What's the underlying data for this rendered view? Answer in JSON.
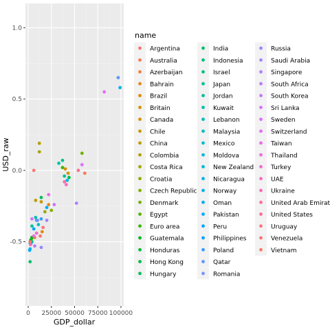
{
  "chart_data": {
    "type": "scatter",
    "xlabel": "GDP_dollar",
    "ylabel": "USD_raw",
    "xlim": [
      -3000,
      103000
    ],
    "ylim": [
      -0.95,
      1.17
    ],
    "x_ticks": [
      0,
      25000,
      50000,
      75000,
      100000
    ],
    "x_tick_labels": [
      "0",
      "25000",
      "50000",
      "75000",
      "100000"
    ],
    "y_ticks": [
      -0.5,
      0.0,
      0.5,
      1.0
    ],
    "y_tick_labels": [
      "-0.5",
      "0.0",
      "0.5",
      "1.0"
    ],
    "grid": true,
    "legend_title": "name",
    "legend_position": "right",
    "legend_columns": 3,
    "colors": {
      "panel_bg": "#ebebeb",
      "grid_major": "#ffffff",
      "grid_minor": "#f4f4f4",
      "axis_text": "#4d4d4d",
      "legend_key_bg": "#f2f2f2"
    },
    "series": [
      {
        "name": "Argentina",
        "color": "#F8766D",
        "points": [
          [
            13000,
            -0.46
          ]
        ]
      },
      {
        "name": "Australia",
        "color": "#F37B59",
        "points": [
          [
            61000,
            -0.02
          ]
        ]
      },
      {
        "name": "Azerbaijan",
        "color": "#ED8141",
        "points": [
          [
            7000,
            -0.47
          ]
        ]
      },
      {
        "name": "Bahrain",
        "color": "#E7861B",
        "points": [
          [
            22000,
            -0.24
          ]
        ]
      },
      {
        "name": "Brazil",
        "color": "#E08B00",
        "points": [
          [
            15000,
            -0.43
          ]
        ]
      },
      {
        "name": "Britain",
        "color": "#D89000",
        "points": [
          [
            40000,
            0.01
          ]
        ]
      },
      {
        "name": "Canada",
        "color": "#CF9400",
        "points": [
          [
            43000,
            -0.02
          ]
        ]
      },
      {
        "name": "Chile",
        "color": "#C59900",
        "points": [
          [
            14000,
            -0.22
          ]
        ]
      },
      {
        "name": "China",
        "color": "#BB9D00",
        "points": [
          [
            8000,
            -0.21
          ]
        ]
      },
      {
        "name": "Colombia",
        "color": "#B0A100",
        "points": [
          [
            12000,
            0.19
          ]
        ]
      },
      {
        "name": "Costa Rica",
        "color": "#A3A500",
        "points": [
          [
            12000,
            0.13
          ]
        ]
      },
      {
        "name": "Croatia",
        "color": "#95A900",
        "points": [
          [
            18000,
            -0.29
          ]
        ]
      },
      {
        "name": "Czech Republic",
        "color": "#85AD00",
        "points": [
          [
            25000,
            -0.28
          ]
        ]
      },
      {
        "name": "Denmark",
        "color": "#72B000",
        "points": [
          [
            58000,
            0.12
          ]
        ]
      },
      {
        "name": "Egypt",
        "color": "#5BB300",
        "points": [
          [
            3500,
            -0.48
          ]
        ]
      },
      {
        "name": "Euro area",
        "color": "#39B600",
        "points": [
          [
            37000,
            0.02
          ]
        ]
      },
      {
        "name": "Guatemala",
        "color": "#00B81F",
        "points": [
          [
            4000,
            -0.47
          ]
        ]
      },
      {
        "name": "Honduras",
        "color": "#00BA38",
        "points": [
          [
            2500,
            -0.49
          ]
        ]
      },
      {
        "name": "Hong Kong",
        "color": "#00BB4B",
        "points": [
          [
            44000,
            -0.05
          ]
        ]
      },
      {
        "name": "Hungary",
        "color": "#00BD5C",
        "points": [
          [
            14000,
            -0.19
          ]
        ]
      },
      {
        "name": "India",
        "color": "#00BE6C",
        "points": [
          [
            2000,
            -0.64
          ]
        ]
      },
      {
        "name": "Indonesia",
        "color": "#00BF7A",
        "points": [
          [
            4000,
            -0.5
          ]
        ]
      },
      {
        "name": "Israel",
        "color": "#00C088",
        "points": [
          [
            37000,
            0.07
          ]
        ]
      },
      {
        "name": "Japan",
        "color": "#00C094",
        "points": [
          [
            39000,
            -0.04
          ]
        ]
      },
      {
        "name": "Jordan",
        "color": "#00C0A0",
        "points": [
          [
            4000,
            -0.39
          ]
        ]
      },
      {
        "name": "Kuwait",
        "color": "#00C0AB",
        "points": [
          [
            33000,
            0.05
          ]
        ]
      },
      {
        "name": "Lebanon",
        "color": "#00BFB6",
        "points": [
          [
            8000,
            -0.33
          ]
        ]
      },
      {
        "name": "Malaysia",
        "color": "#00BEC0",
        "points": [
          [
            11000,
            -0.38
          ]
        ]
      },
      {
        "name": "Mexico",
        "color": "#00BDC9",
        "points": [
          [
            9000,
            -0.35
          ]
        ]
      },
      {
        "name": "Moldova",
        "color": "#00BBD2",
        "points": [
          [
            2000,
            -0.51
          ]
        ]
      },
      {
        "name": "New Zealand",
        "color": "#00B8DA",
        "points": [
          [
            42000,
            -0.07
          ]
        ]
      },
      {
        "name": "Nicaragua",
        "color": "#00B5E2",
        "points": [
          [
            2000,
            -0.55
          ]
        ]
      },
      {
        "name": "Norway",
        "color": "#00B1E9",
        "points": [
          [
            99000,
            0.58
          ]
        ]
      },
      {
        "name": "Oman",
        "color": "#00ADF0",
        "points": [
          [
            20000,
            -0.26
          ]
        ]
      },
      {
        "name": "Pakistan",
        "color": "#00A9FF",
        "points": [
          [
            1500,
            -0.56
          ]
        ]
      },
      {
        "name": "Peru",
        "color": "#00A5FF",
        "points": [
          [
            6000,
            -0.41
          ]
        ]
      },
      {
        "name": "Philippines",
        "color": "#00A1FF",
        "points": [
          [
            3000,
            -0.51
          ]
        ]
      },
      {
        "name": "Poland",
        "color": "#329BFF",
        "points": [
          [
            14000,
            -0.34
          ]
        ]
      },
      {
        "name": "Qatar",
        "color": "#5E95FF",
        "points": [
          [
            97000,
            0.65
          ]
        ]
      },
      {
        "name": "Romania",
        "color": "#7A8FFF",
        "points": [
          [
            10000,
            -0.35
          ]
        ]
      },
      {
        "name": "Russia",
        "color": "#8F89FF",
        "points": [
          [
            14000,
            -0.54
          ]
        ]
      },
      {
        "name": "Saudi Arabia",
        "color": "#A183FF",
        "points": [
          [
            20000,
            -0.35
          ]
        ]
      },
      {
        "name": "Singapore",
        "color": "#B07EFF",
        "points": [
          [
            52000,
            -0.23
          ]
        ]
      },
      {
        "name": "South Africa",
        "color": "#BD79FF",
        "points": [
          [
            7000,
            -0.53
          ]
        ]
      },
      {
        "name": "South Korea",
        "color": "#C875FF",
        "points": [
          [
            28000,
            -0.24
          ]
        ]
      },
      {
        "name": "Sri Lanka",
        "color": "#D272FF",
        "points": [
          [
            4000,
            -0.34
          ]
        ]
      },
      {
        "name": "Sweden",
        "color": "#DB6FFE",
        "points": [
          [
            58000,
            0.04
          ]
        ]
      },
      {
        "name": "Switzerland",
        "color": "#E26DF3",
        "points": [
          [
            82000,
            0.55
          ]
        ]
      },
      {
        "name": "Taiwan",
        "color": "#E86CE8",
        "points": [
          [
            22000,
            -0.17
          ]
        ]
      },
      {
        "name": "Thailand",
        "color": "#EE6BDC",
        "points": [
          [
            6000,
            -0.46
          ]
        ]
      },
      {
        "name": "Turkey",
        "color": "#F26BCF",
        "points": [
          [
            9000,
            -0.44
          ]
        ]
      },
      {
        "name": "UAE",
        "color": "#F66BC1",
        "points": [
          [
            41000,
            -0.1
          ]
        ]
      },
      {
        "name": "Ukraine",
        "color": "#F96BB3",
        "points": [
          [
            2500,
            -0.52
          ]
        ]
      },
      {
        "name": "United Arab Emirates",
        "color": "#FB6DA5",
        "points": [
          [
            39000,
            -0.08
          ]
        ]
      },
      {
        "name": "United States",
        "color": "#FC6F96",
        "points": [
          [
            54000,
            0.0
          ]
        ]
      },
      {
        "name": "Uruguay",
        "color": "#FD7287",
        "points": [
          [
            16000,
            -0.4
          ]
        ]
      },
      {
        "name": "Venezuela",
        "color": "#FC7577",
        "points": [
          [
            6000,
            0.0
          ]
        ]
      },
      {
        "name": "Vietnam",
        "color": "#FB7967",
        "points": [
          [
            2000,
            -0.5
          ]
        ]
      }
    ]
  }
}
